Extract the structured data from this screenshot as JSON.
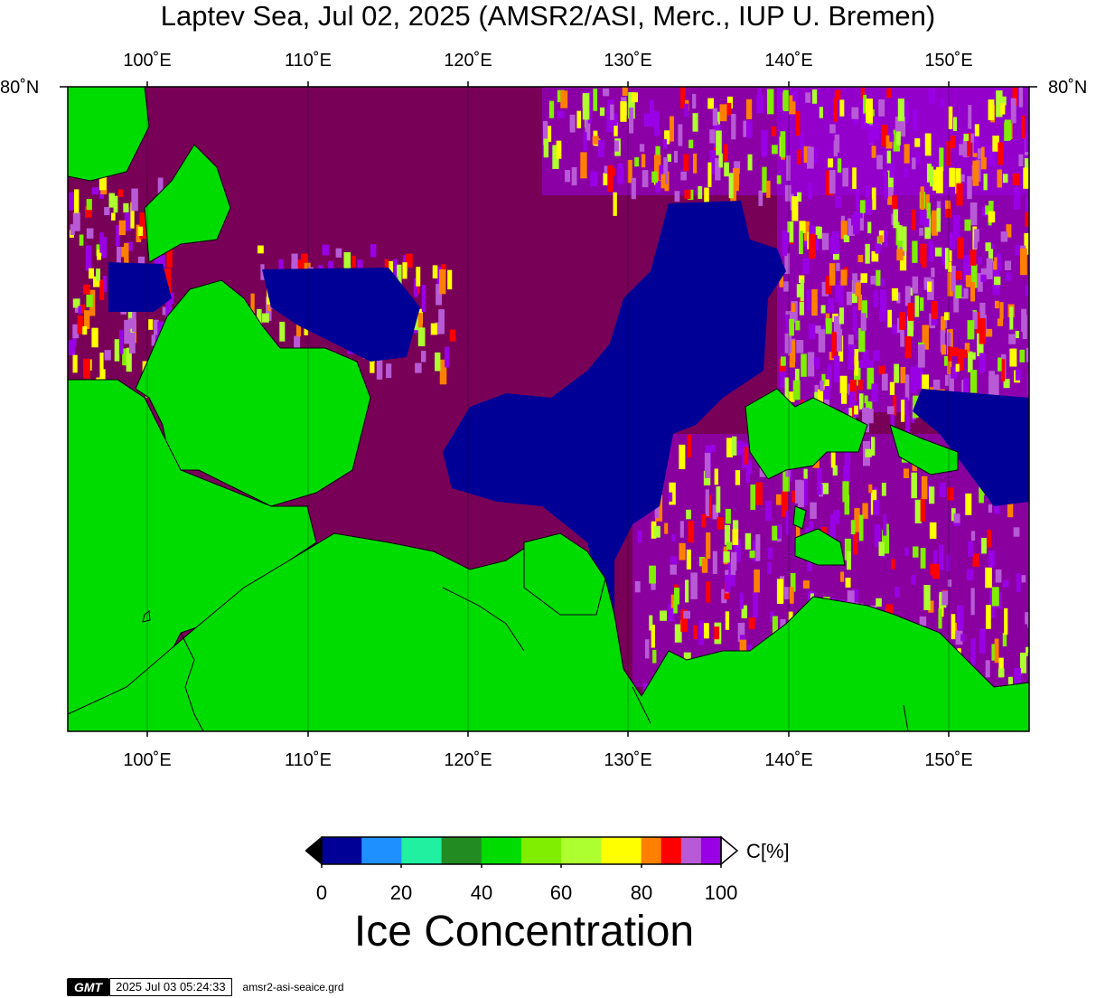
{
  "title": "Laptev Sea, Jul 02, 2025 (AMSR2/ASI, Merc., IUP U. Bremen)",
  "map": {
    "lon_range": [
      95,
      155
    ],
    "lat_top_label": "80°N",
    "top_lon_labels": [
      "100˚E",
      "110˚E",
      "120˚E",
      "130˚E",
      "140˚E",
      "150˚E"
    ],
    "bottom_lon_labels": [
      "100˚E",
      "110˚E",
      "120˚E",
      "130˚E",
      "140˚E",
      "150˚E"
    ],
    "left_lat_label": "80˚N",
    "right_lat_label": "80˚N",
    "colors": {
      "land": "#00dc00",
      "ocean_open": "#000096",
      "ice_high": "#780057",
      "ice_mid": "#9a00e6"
    }
  },
  "colorbar": {
    "title": "Ice Concentration",
    "unit": "C[%]",
    "tick_labels": [
      "0",
      "20",
      "40",
      "60",
      "80",
      "100"
    ],
    "colors": [
      "#000096",
      "#1e90ff",
      "#20f0a0",
      "#228b22",
      "#00dc00",
      "#7fee00",
      "#adff2f",
      "#ffff00",
      "#ff8000",
      "#ff0000",
      "#b85ad6",
      "#9a00e6"
    ]
  },
  "footer": {
    "logo": "GMT",
    "timestamp": "2025 Jul 03 05:24:33",
    "grid_file": "amsr2-asi-seaice.grd"
  }
}
